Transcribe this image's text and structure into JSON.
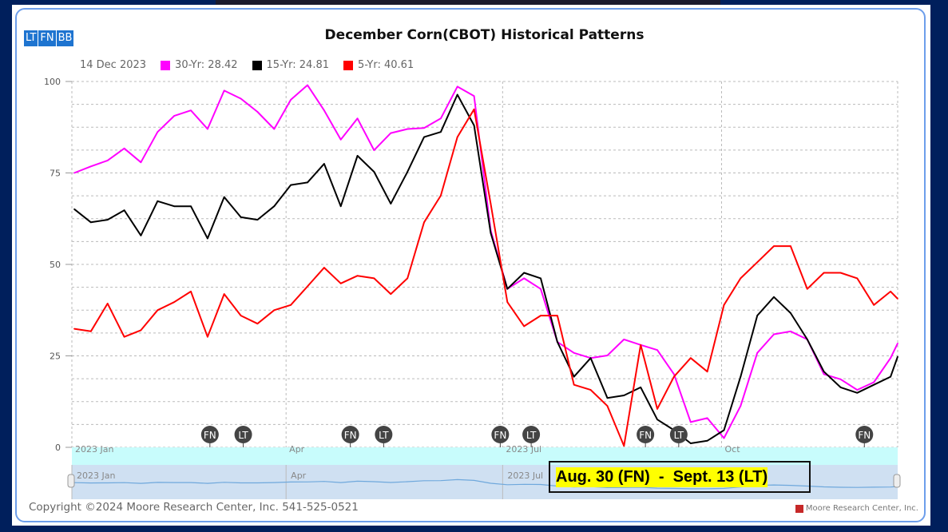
{
  "buttons": [
    "LT",
    "FN",
    "BB"
  ],
  "chart_data": {
    "type": "line",
    "title": "December Corn(CBOT) Historical Patterns",
    "legend": {
      "date": "14 Dec 2023",
      "entries": [
        {
          "label": "30-Yr: 28.42",
          "color": "#ff00ff"
        },
        {
          "label": "15-Yr: 24.81",
          "color": "#000000"
        },
        {
          "label": "5-Yr: 40.61",
          "color": "#ff0000"
        }
      ],
      "placement": "top-left"
    },
    "ylim": [
      0,
      100
    ],
    "yticks": [
      0,
      25,
      50,
      75,
      100
    ],
    "xlim": [
      "2023-01-01",
      "2023-12-14"
    ],
    "xticks": [
      {
        "date": "2023-01-01",
        "label": "2023 Jan"
      },
      {
        "date": "2023-04-01",
        "label": "Apr"
      },
      {
        "date": "2023-07-01",
        "label": "2023 Jul"
      },
      {
        "date": "2023-10-01",
        "label": "Oct"
      }
    ],
    "grid": true,
    "x": [
      "2023-01-02",
      "2023-01-09",
      "2023-01-16",
      "2023-01-23",
      "2023-01-30",
      "2023-02-06",
      "2023-02-13",
      "2023-02-20",
      "2023-02-27",
      "2023-03-06",
      "2023-03-13",
      "2023-03-20",
      "2023-03-27",
      "2023-04-03",
      "2023-04-10",
      "2023-04-17",
      "2023-04-24",
      "2023-05-01",
      "2023-05-08",
      "2023-05-15",
      "2023-05-22",
      "2023-05-29",
      "2023-06-05",
      "2023-06-12",
      "2023-06-19",
      "2023-06-26",
      "2023-07-03",
      "2023-07-10",
      "2023-07-17",
      "2023-07-24",
      "2023-07-31",
      "2023-08-07",
      "2023-08-14",
      "2023-08-21",
      "2023-08-28",
      "2023-09-04",
      "2023-09-11",
      "2023-09-18",
      "2023-09-25",
      "2023-10-02",
      "2023-10-09",
      "2023-10-16",
      "2023-10-23",
      "2023-10-30",
      "2023-11-06",
      "2023-11-13",
      "2023-11-20",
      "2023-11-27",
      "2023-12-04",
      "2023-12-11",
      "2023-12-14"
    ],
    "series": [
      {
        "name": "30-Yr",
        "color": "#ff00ff",
        "values": [
          75.0,
          76.8,
          78.4,
          81.7,
          77.9,
          86.2,
          90.6,
          92.1,
          87.0,
          97.5,
          95.3,
          91.7,
          87.0,
          95.0,
          99.0,
          92.1,
          84.1,
          89.9,
          81.2,
          85.9,
          87.0,
          87.3,
          89.9,
          98.6,
          96.0,
          59.3,
          43.3,
          46.2,
          43.3,
          28.8,
          25.8,
          24.4,
          25.1,
          29.5,
          28.0,
          26.6,
          20.0,
          6.9,
          8.0,
          2.5,
          11.3,
          25.8,
          30.9,
          31.7,
          29.5,
          20.0,
          18.6,
          15.7,
          17.8,
          24.4,
          28.42
        ]
      },
      {
        "name": "15-Yr",
        "color": "#000000",
        "values": [
          65.1,
          61.5,
          62.2,
          64.8,
          57.9,
          67.3,
          65.9,
          65.9,
          57.1,
          68.4,
          62.9,
          62.2,
          65.9,
          71.7,
          72.4,
          77.5,
          65.9,
          79.7,
          75.3,
          66.6,
          75.3,
          84.8,
          86.2,
          96.4,
          88.0,
          58.6,
          43.3,
          47.7,
          46.2,
          28.8,
          19.3,
          24.4,
          13.5,
          14.2,
          16.4,
          7.6,
          4.7,
          1.1,
          1.8,
          4.7,
          19.3,
          36.0,
          41.1,
          36.7,
          29.5,
          20.7,
          16.4,
          14.9,
          17.1,
          19.3,
          24.81
        ]
      },
      {
        "name": "5-Yr",
        "color": "#ff0000",
        "values": [
          32.4,
          31.7,
          39.3,
          30.2,
          32.0,
          37.5,
          39.7,
          42.6,
          30.2,
          41.9,
          36.0,
          33.8,
          37.5,
          38.9,
          44.0,
          49.1,
          44.8,
          46.9,
          46.2,
          41.9,
          46.2,
          61.5,
          68.8,
          84.8,
          92.4,
          66.6,
          39.7,
          33.1,
          36.0,
          36.0,
          17.1,
          15.7,
          11.3,
          0.4,
          28.0,
          10.5,
          19.3,
          24.4,
          20.7,
          38.9,
          46.2,
          50.6,
          55.0,
          55.0,
          43.3,
          47.7,
          47.7,
          46.2,
          38.9,
          42.6,
          40.61
        ]
      }
    ],
    "markers": [
      {
        "label": "FN",
        "date": "2023-02-28"
      },
      {
        "label": "LT",
        "date": "2023-03-14"
      },
      {
        "label": "FN",
        "date": "2023-04-28"
      },
      {
        "label": "LT",
        "date": "2023-05-12"
      },
      {
        "label": "FN",
        "date": "2023-06-30"
      },
      {
        "label": "LT",
        "date": "2023-07-13"
      },
      {
        "label": "FN",
        "date": "2023-08-30"
      },
      {
        "label": "LT",
        "date": "2023-09-13"
      },
      {
        "label": "FN",
        "date": "2023-11-30"
      }
    ],
    "navigator": {
      "labels": [
        "2023 Jan",
        "Apr",
        "2023 Jul"
      ]
    },
    "annotation": "Aug. 30 (FN)  -  Sept. 13 (LT)"
  },
  "footer": {
    "copyright": "Copyright ©2024 Moore Research Center, Inc. 541-525-0521",
    "brand": "Moore Research Center, Inc."
  }
}
